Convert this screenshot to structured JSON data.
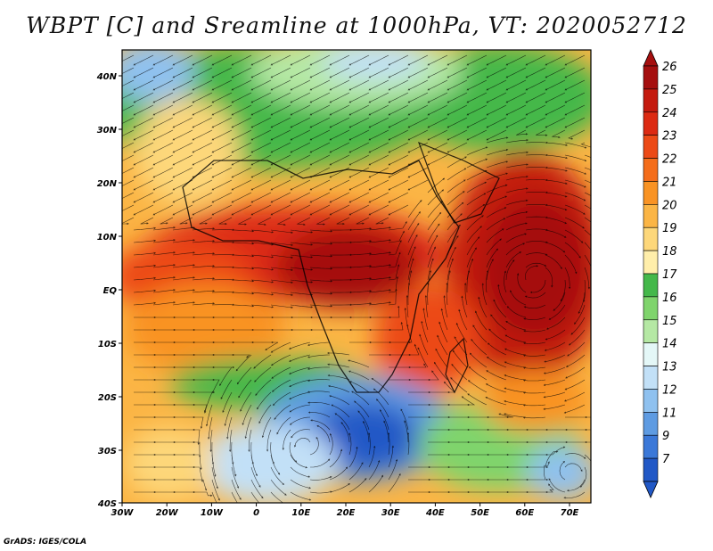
{
  "title": "WBPT [C] and Sreamline at 1000hPa, VT: 2020052712",
  "footer": "GrADS: IGES/COLA",
  "lat_labels": [
    "40N",
    "30N",
    "20N",
    "10N",
    "EQ",
    "10S",
    "20S",
    "30S",
    "40S"
  ],
  "lon_labels": [
    "30W",
    "20W",
    "10W",
    "0",
    "10E",
    "20E",
    "30E",
    "40E",
    "50E",
    "60E",
    "70E"
  ],
  "colorbar": {
    "labels": [
      "26",
      "25",
      "24",
      "23",
      "22",
      "21",
      "20",
      "19",
      "18",
      "17",
      "16",
      "15",
      "14",
      "13",
      "12",
      "11",
      "9",
      "7"
    ],
    "colors": [
      "#a50f0f",
      "#c41a0e",
      "#dc2a12",
      "#ec4a16",
      "#f46d1a",
      "#f99324",
      "#fbb545",
      "#fdd77a",
      "#ffeeaa",
      "#44b84a",
      "#7fd46c",
      "#b5e8a4",
      "#e4f7f7",
      "#c2e0f7",
      "#8fc1ef",
      "#5e9be2",
      "#3b78d8",
      "#2158c6"
    ]
  },
  "map_layers": {
    "field": "wet-bulb potential temperature",
    "overlay": "streamlines",
    "level": "1000hPa",
    "valid_time": "2020052712"
  }
}
